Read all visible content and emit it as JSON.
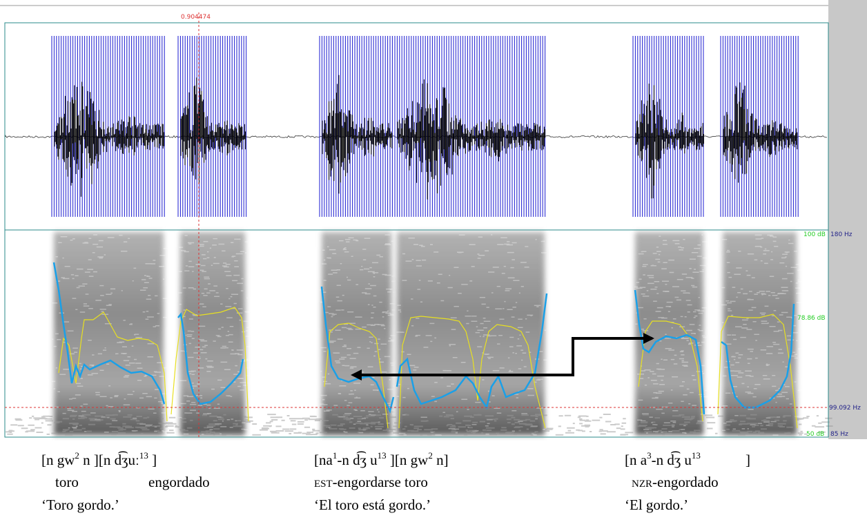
{
  "cursor": {
    "time": "0.904474"
  },
  "scales": {
    "db_top": "100 dB",
    "hz_top": "180 Hz",
    "db_mid": "78.86 dB",
    "hz_cursor": "99.092 Hz",
    "db_bottom": "50 dB",
    "hz_bottom": "85 Hz"
  },
  "examples": [
    {
      "ipa": [
        "[n gw",
        "2",
        " n ][n d͡ʒuː",
        "13",
        " ]"
      ],
      "gloss": [
        "toro",
        "engordado"
      ],
      "translation": "‘Toro gordo.’"
    },
    {
      "ipa": [
        "[na",
        "1",
        "-n  d͡ʒ u",
        "13",
        " ][n gw",
        "2",
        " n]"
      ],
      "gloss": [
        "EST",
        "-engordarse toro"
      ],
      "translation": "‘El toro está gordo.’"
    },
    {
      "ipa": [
        "[n a",
        "3",
        "-n d͡ʒ u",
        "13",
        "]"
      ],
      "gloss": [
        "NZR",
        "-engordado"
      ],
      "translation": "‘El gordo.’"
    }
  ]
}
